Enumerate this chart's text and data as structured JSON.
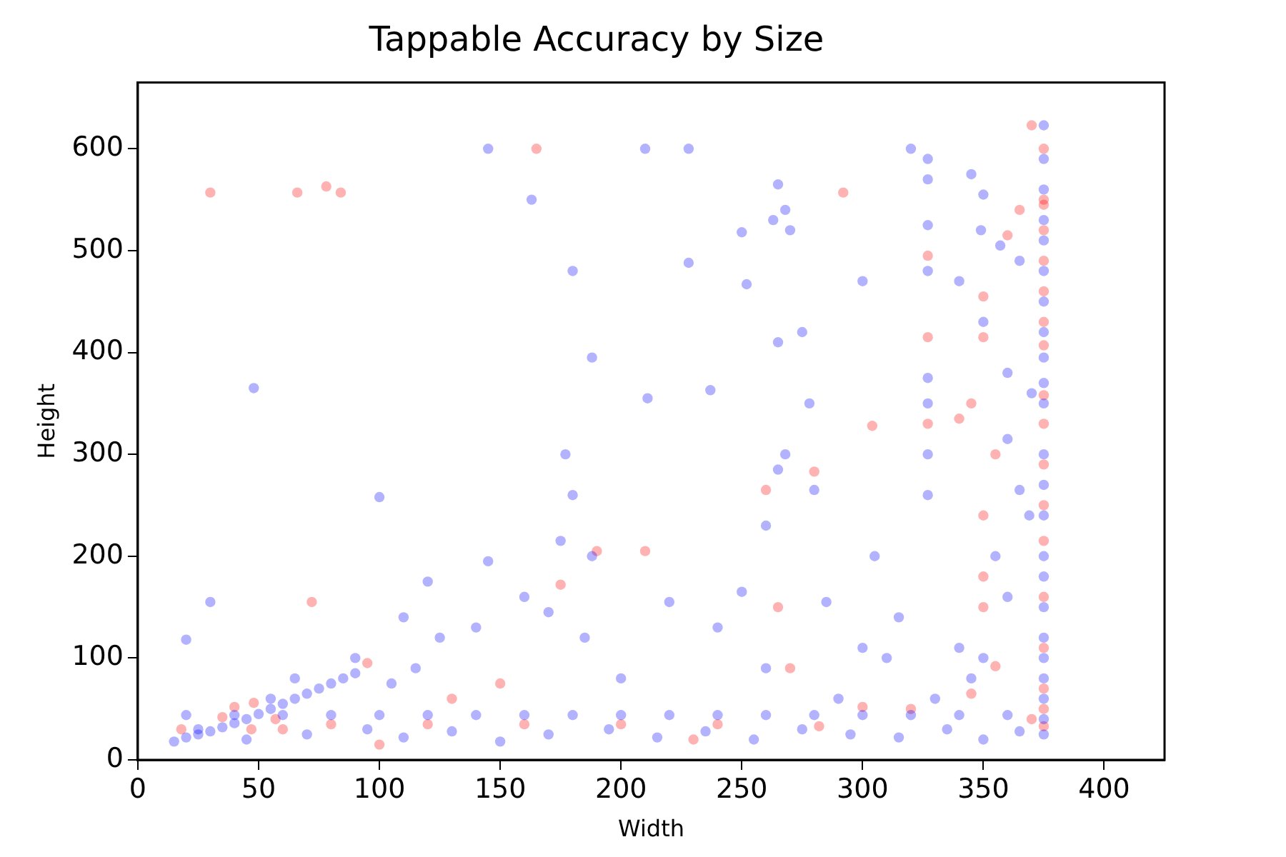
{
  "chart_data": {
    "type": "scatter",
    "title": "Tappable Accuracy by Size",
    "xlabel": "Width",
    "ylabel": "Height",
    "xlim": [
      0,
      425
    ],
    "xticks": [
      0,
      50,
      100,
      150,
      200,
      250,
      300,
      350,
      400
    ],
    "ylim": [
      0,
      665
    ],
    "yticks": [
      0,
      100,
      200,
      300,
      400,
      500,
      600
    ],
    "grid": false,
    "legend": false,
    "marker": "circle",
    "series": [
      {
        "color": "#0000ff",
        "x": [
          15,
          20,
          25,
          30,
          35,
          40,
          45,
          50,
          55,
          60,
          65,
          70,
          75,
          80,
          85,
          90,
          20,
          40,
          60,
          80,
          100,
          120,
          140,
          160,
          180,
          200,
          220,
          240,
          260,
          280,
          300,
          320,
          340,
          360,
          25,
          45,
          70,
          95,
          110,
          130,
          150,
          170,
          195,
          215,
          235,
          255,
          275,
          295,
          315,
          335,
          350,
          365,
          55,
          65,
          90,
          105,
          115,
          125,
          110,
          120,
          145,
          160,
          175,
          180,
          177,
          180,
          188,
          188,
          185,
          170,
          140,
          100,
          48,
          30,
          20,
          145,
          163,
          210,
          228,
          228,
          211,
          237,
          250,
          252,
          265,
          268,
          263,
          270,
          265,
          275,
          278,
          268,
          265,
          260,
          280,
          285,
          300,
          305,
          320,
          327,
          327,
          327,
          327,
          327,
          327,
          327,
          327,
          345,
          350,
          349,
          357,
          365,
          340,
          350,
          360,
          365,
          360,
          355,
          360,
          340,
          350,
          345,
          330,
          375,
          375,
          375,
          375,
          375,
          375,
          375,
          375,
          375,
          375,
          375,
          375,
          375,
          375,
          375,
          375,
          375,
          375,
          375,
          375,
          375,
          375,
          375,
          370,
          369,
          220,
          240,
          250,
          200,
          310,
          315,
          300,
          290,
          260
        ],
        "values": [
          18,
          22,
          25,
          28,
          32,
          36,
          40,
          45,
          50,
          55,
          60,
          65,
          70,
          75,
          80,
          85,
          44,
          44,
          44,
          44,
          44,
          44,
          44,
          44,
          44,
          44,
          44,
          44,
          44,
          44,
          44,
          44,
          44,
          44,
          30,
          20,
          25,
          30,
          22,
          28,
          18,
          25,
          30,
          22,
          28,
          20,
          30,
          25,
          22,
          30,
          20,
          28,
          60,
          80,
          100,
          75,
          90,
          120,
          140,
          175,
          195,
          160,
          215,
          260,
          300,
          480,
          395,
          200,
          120,
          145,
          130,
          258,
          365,
          155,
          118,
          600,
          550,
          600,
          600,
          488,
          355,
          363,
          518,
          467,
          565,
          540,
          530,
          520,
          410,
          420,
          350,
          300,
          285,
          230,
          265,
          155,
          470,
          200,
          600,
          590,
          570,
          525,
          480,
          375,
          350,
          300,
          260,
          575,
          555,
          520,
          505,
          490,
          470,
          430,
          380,
          265,
          315,
          200,
          160,
          110,
          100,
          80,
          60,
          623,
          590,
          560,
          530,
          510,
          480,
          450,
          420,
          395,
          370,
          350,
          300,
          270,
          240,
          200,
          180,
          150,
          120,
          100,
          80,
          60,
          40,
          25,
          360,
          240,
          155,
          130,
          165,
          80,
          100,
          140,
          110,
          60,
          90
        ]
      },
      {
        "color": "#ff0000",
        "x": [
          30,
          66,
          78,
          84,
          165,
          292,
          370,
          375,
          375,
          375,
          375,
          375,
          375,
          375,
          375,
          375,
          375,
          375,
          375,
          375,
          375,
          375,
          375,
          375,
          375,
          365,
          360,
          350,
          350,
          345,
          355,
          350,
          350,
          350,
          327,
          327,
          327,
          260,
          280,
          304,
          340,
          210,
          190,
          175,
          150,
          95,
          72,
          40,
          48,
          35,
          47,
          57,
          60,
          80,
          120,
          160,
          200,
          240,
          265,
          270,
          282,
          320,
          345,
          355,
          370,
          300,
          230,
          100,
          130,
          18
        ],
        "values": [
          557,
          557,
          563,
          557,
          600,
          557,
          623,
          600,
          550,
          545,
          520,
          490,
          460,
          430,
          407,
          358,
          330,
          290,
          250,
          215,
          160,
          110,
          70,
          50,
          33,
          540,
          515,
          455,
          415,
          350,
          300,
          240,
          180,
          150,
          415,
          495,
          330,
          265,
          283,
          328,
          335,
          205,
          205,
          172,
          75,
          95,
          155,
          52,
          56,
          42,
          30,
          40,
          30,
          35,
          35,
          35,
          35,
          35,
          150,
          90,
          33,
          50,
          65,
          92,
          40,
          52,
          20,
          15,
          60,
          30
        ]
      }
    ]
  }
}
